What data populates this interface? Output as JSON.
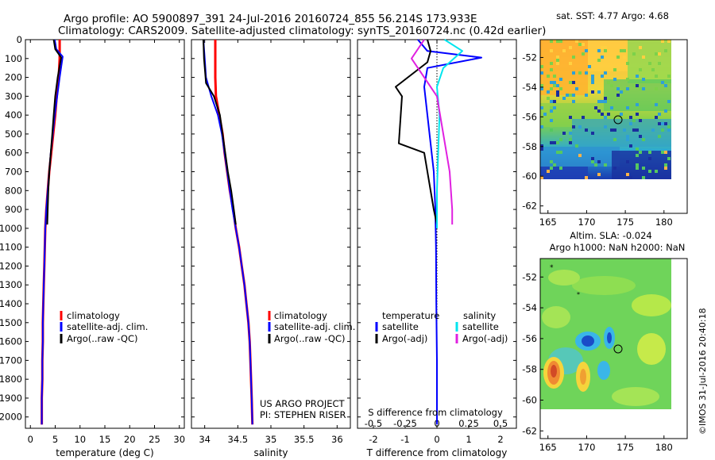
{
  "header": {
    "title_line1": "Argo profile: AO 5900897_391 24-Jul-2016 20160724_855 56.214S 173.933E",
    "title_line2": "Climatology: CARS2009. Satellite-adjusted climatology: synTS_20160724.nc (0.42d earlier)"
  },
  "map_top": {
    "title": "sat. SST: 4.77 Argo: 4.68",
    "xticks": [
      "165",
      "170",
      "175",
      "180"
    ],
    "yticks": [
      "-52",
      "-54",
      "-56",
      "-58",
      "-60",
      "-62"
    ]
  },
  "map_bottom": {
    "title_line1": "Altim. SLA: -0.024",
    "title_line2": "Argo h1000: NaN h2000: NaN",
    "xticks": [
      "165",
      "170",
      "175",
      "180"
    ],
    "yticks": [
      "-52",
      "-54",
      "-56",
      "-58",
      "-60",
      "-62"
    ]
  },
  "side_credit": "©IMOS 31-Jul-2016 20:40:18",
  "project_credit": {
    "line1": "US ARGO PROJECT",
    "line2": "PI: STEPHEN RISER"
  },
  "colors": {
    "climatology": "#ff0000",
    "satellite": "#0000ff",
    "argo": "#000000",
    "sat_salinity": "#00e5ee",
    "argo_salinity": "#e020e0"
  },
  "chart_data": [
    {
      "type": "line",
      "xlabel": "temperature (deg C)",
      "ylabel": "",
      "xlim": [
        -1,
        31
      ],
      "ylim": [
        2060,
        0
      ],
      "xticks": [
        "0",
        "5",
        "10",
        "15",
        "20",
        "25",
        "30"
      ],
      "yticks": [
        "0",
        "100",
        "200",
        "300",
        "400",
        "500",
        "600",
        "700",
        "800",
        "900",
        "1000",
        "1100",
        "1200",
        "1300",
        "1400",
        "1500",
        "1600",
        "1700",
        "1800",
        "1900",
        "2000"
      ],
      "legend": [
        "climatology",
        "satellite-adj. clim.",
        "Argo(..raw -QC)"
      ],
      "series": [
        {
          "name": "climatology",
          "color": "#ff0000",
          "x": [
            5.9,
            5.9,
            5.7,
            5.3,
            5.0,
            4.6,
            4.2,
            3.8,
            3.5,
            3.2,
            3.0,
            2.9,
            2.8,
            2.7,
            2.6,
            2.5,
            2.5,
            2.4,
            2.4,
            2.3,
            2.3
          ],
          "y": [
            0,
            100,
            200,
            300,
            400,
            500,
            600,
            700,
            800,
            900,
            1000,
            1100,
            1200,
            1300,
            1400,
            1500,
            1600,
            1700,
            1800,
            1900,
            2040
          ]
        },
        {
          "name": "satellite-adj. clim.",
          "color": "#0000ff",
          "x": [
            4.9,
            5.2,
            6.5,
            5.9,
            5.4,
            4.9,
            4.5,
            4.1,
            3.8,
            3.5,
            3.2,
            3.0,
            2.9,
            2.8,
            2.7,
            2.6,
            2.5,
            2.5,
            2.4,
            2.4,
            2.3,
            2.3
          ],
          "y": [
            0,
            50,
            90,
            200,
            300,
            400,
            500,
            600,
            700,
            800,
            900,
            1000,
            1100,
            1200,
            1300,
            1400,
            1500,
            1600,
            1700,
            1800,
            1900,
            2040
          ]
        },
        {
          "name": "Argo(..raw -QC)",
          "color": "#000000",
          "x": [
            4.7,
            5.0,
            6.2,
            5.5,
            5.0,
            4.7,
            4.4,
            4.1,
            3.8,
            3.6,
            3.4
          ],
          "y": [
            0,
            50,
            95,
            200,
            300,
            400,
            500,
            600,
            700,
            800,
            980
          ]
        }
      ]
    },
    {
      "type": "line",
      "xlabel": "salinity",
      "ylabel": "",
      "xlim": [
        33.8,
        36.2
      ],
      "ylim": [
        2060,
        0
      ],
      "xticks": [
        "34",
        "34.5",
        "35",
        "35.5",
        "36"
      ],
      "legend": [
        "climatology",
        "satellite-adj. clim.",
        "Argo(..raw -QC)"
      ],
      "series": [
        {
          "name": "climatology",
          "color": "#ff0000",
          "x": [
            34.16,
            34.16,
            34.16,
            34.17,
            34.22,
            34.27,
            34.3,
            34.34,
            34.38,
            34.43,
            34.47,
            34.52,
            34.56,
            34.6,
            34.63,
            34.66,
            34.68,
            34.69,
            34.7,
            34.71,
            34.72
          ],
          "y": [
            0,
            100,
            200,
            300,
            400,
            500,
            600,
            700,
            800,
            900,
            1000,
            1100,
            1200,
            1300,
            1400,
            1500,
            1600,
            1700,
            1800,
            1900,
            2040
          ]
        },
        {
          "name": "satellite-adj. clim.",
          "color": "#0000ff",
          "x": [
            33.98,
            34.0,
            34.02,
            34.1,
            34.2,
            34.26,
            34.3,
            34.34,
            34.38,
            34.42,
            34.47,
            34.52,
            34.56,
            34.6,
            34.63,
            34.66,
            34.68,
            34.69,
            34.7,
            34.71,
            34.72
          ],
          "y": [
            0,
            100,
            200,
            300,
            400,
            500,
            600,
            700,
            800,
            900,
            1000,
            1100,
            1200,
            1300,
            1400,
            1500,
            1600,
            1700,
            1800,
            1900,
            2040
          ]
        },
        {
          "name": "Argo(..raw -QC)",
          "color": "#000000",
          "x": [
            33.98,
            33.99,
            34.02,
            34.14,
            34.23,
            34.27,
            34.31,
            34.35,
            34.4,
            34.44,
            34.47
          ],
          "y": [
            0,
            100,
            230,
            300,
            400,
            500,
            600,
            700,
            800,
            900,
            980
          ]
        }
      ]
    },
    {
      "type": "line",
      "xlabel": "T difference from climatology",
      "xlabel_top": "S difference from climatology",
      "ylabel": "",
      "xlim": [
        -2.5,
        2.5
      ],
      "ylim": [
        2060,
        0
      ],
      "xticks": [
        "-2",
        "-1",
        "0",
        "1",
        "2"
      ],
      "xticks_top": [
        "-0.5",
        "-0.25",
        "0",
        "0.25",
        "0.5"
      ],
      "legend_temperature_title": "temperature",
      "legend_salinity_title": "salinity",
      "legend": [
        "satellite",
        "Argo(-adj)",
        "satellite",
        "Argo(-adj)"
      ],
      "series": [
        {
          "name": "satellite",
          "group": "temperature",
          "color": "#0000ff",
          "x": [
            -0.6,
            -0.3,
            1.4,
            -0.3,
            -0.4,
            -0.3,
            -0.2,
            -0.1,
            -0.05,
            -0.03,
            -0.02,
            0.0,
            0.0
          ],
          "y": [
            0,
            60,
            95,
            150,
            250,
            400,
            550,
            700,
            900,
            1100,
            1400,
            1700,
            2040
          ]
        },
        {
          "name": "Argo(-adj)",
          "group": "temperature",
          "color": "#000000",
          "x": [
            -0.3,
            -0.2,
            -0.3,
            -1.3,
            -1.1,
            -1.2,
            -0.4,
            -0.3,
            -0.2,
            -0.1,
            0.0
          ],
          "y": [
            0,
            60,
            120,
            250,
            300,
            550,
            600,
            700,
            800,
            900,
            980
          ]
        },
        {
          "name": "satellite",
          "group": "salinity",
          "color": "#00e5ee",
          "x": [
            0.06,
            0.2,
            0.05,
            0.0,
            0.02,
            0.01,
            0.0,
            0.0
          ],
          "y": [
            0,
            60,
            150,
            250,
            400,
            600,
            800,
            1000
          ]
        },
        {
          "name": "Argo(-adj)",
          "group": "salinity",
          "color": "#e020e0",
          "x": [
            -0.1,
            -0.2,
            -0.1,
            0.0,
            0.05,
            0.1,
            0.12,
            0.12
          ],
          "y": [
            0,
            100,
            200,
            300,
            500,
            700,
            900,
            980
          ]
        }
      ]
    }
  ]
}
